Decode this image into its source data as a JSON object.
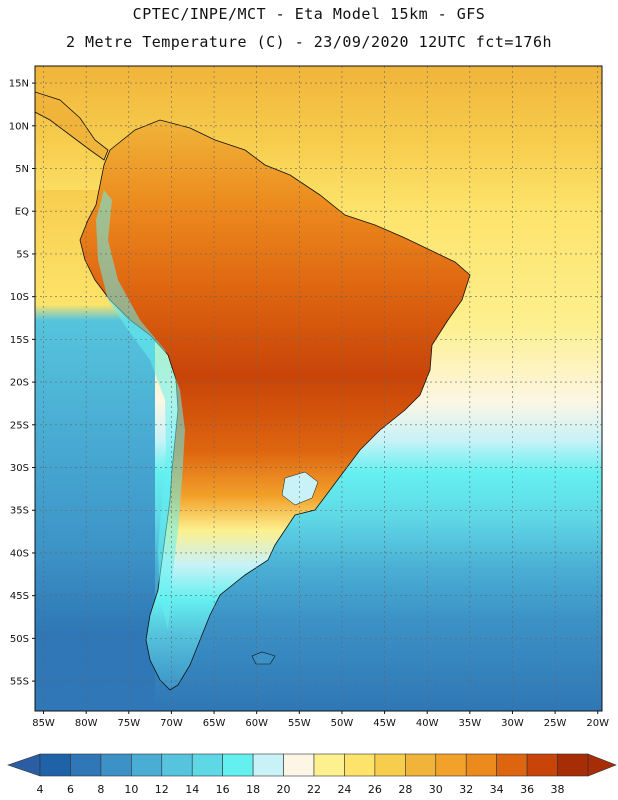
{
  "header": {
    "line1": "CPTEC/INPE/MCT -  Eta Model 15km - GFS",
    "line2": "2 Metre Temperature (C) - 23/09/2020 12UTC fct=176h"
  },
  "axes": {
    "lat_labels": [
      "15N",
      "10N",
      "5N",
      "EQ",
      "5S",
      "10S",
      "15S",
      "20S",
      "25S",
      "30S",
      "35S",
      "40S",
      "45S",
      "50S",
      "55S"
    ],
    "lon_labels": [
      "85W",
      "80W",
      "75W",
      "70W",
      "65W",
      "60W",
      "55W",
      "50W",
      "45W",
      "40W",
      "35W",
      "30W",
      "25W",
      "20W"
    ]
  },
  "colorbar": {
    "labels": [
      "4",
      "6",
      "8",
      "10",
      "12",
      "14",
      "16",
      "18",
      "20",
      "22",
      "24",
      "26",
      "28",
      "30",
      "32",
      "34",
      "36",
      "38"
    ],
    "colors": [
      "#1f62a8",
      "#2f77b6",
      "#3c92c6",
      "#4aaed4",
      "#56c4dd",
      "#5fd8e6",
      "#65f0f0",
      "#c8f2f8",
      "#fdf6e4",
      "#fdf08e",
      "#fde36a",
      "#f7cd4e",
      "#f0b43a",
      "#f2a12a",
      "#ec8a1e",
      "#de6510",
      "#c84408",
      "#a62d05"
    ]
  },
  "map_features": {
    "ocean_lat_colors": {
      "15": "#f0b43a",
      "5": "#f7cd4e",
      "0": "#fde36a",
      "-10": "#fdf08e",
      "-20": "#fdf6e4",
      "-25": "#c8f2f8",
      "-30": "#65f0f0",
      "-35": "#5fd8e6",
      "-42": "#4aaed4",
      "-48": "#3c92c6",
      "-55": "#2f77b6"
    }
  }
}
